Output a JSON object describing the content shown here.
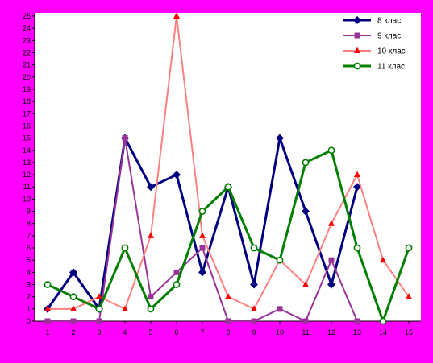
{
  "chart_data": {
    "type": "line",
    "x": [
      1,
      2,
      3,
      4,
      5,
      6,
      7,
      8,
      9,
      10,
      11,
      12,
      13,
      14,
      15
    ],
    "ylim": [
      0,
      25
    ],
    "yticks": [
      0,
      1,
      2,
      3,
      4,
      5,
      6,
      7,
      8,
      9,
      10,
      11,
      12,
      13,
      14,
      15,
      16,
      17,
      18,
      19,
      20,
      21,
      22,
      23,
      24,
      25
    ],
    "grid": false,
    "legend_position": "top-right",
    "background_color": "#FF00FF",
    "plot_background_color": "#FFFFFF",
    "series": [
      {
        "name": "8 клас",
        "color": "#000080",
        "marker": "plus",
        "values": [
          1,
          4,
          1,
          15,
          11,
          12,
          4,
          11,
          3,
          15,
          9,
          3,
          11,
          null,
          null
        ]
      },
      {
        "name": "9 клас",
        "color": "#993399",
        "marker": "square",
        "values": [
          0,
          0,
          0,
          15,
          2,
          4,
          6,
          0,
          0,
          1,
          0,
          5,
          0,
          null,
          null
        ]
      },
      {
        "name": "10 клас",
        "color": "#FF8080",
        "marker": "triangle",
        "values": [
          1,
          1,
          2,
          1,
          7,
          25,
          7,
          2,
          1,
          5,
          3,
          8,
          12,
          5,
          2
        ]
      },
      {
        "name": "11 клас",
        "color": "#008000",
        "marker": "circle",
        "values": [
          3,
          2,
          1,
          6,
          1,
          3,
          9,
          11,
          6,
          5,
          13,
          14,
          6,
          0,
          6
        ]
      }
    ]
  }
}
